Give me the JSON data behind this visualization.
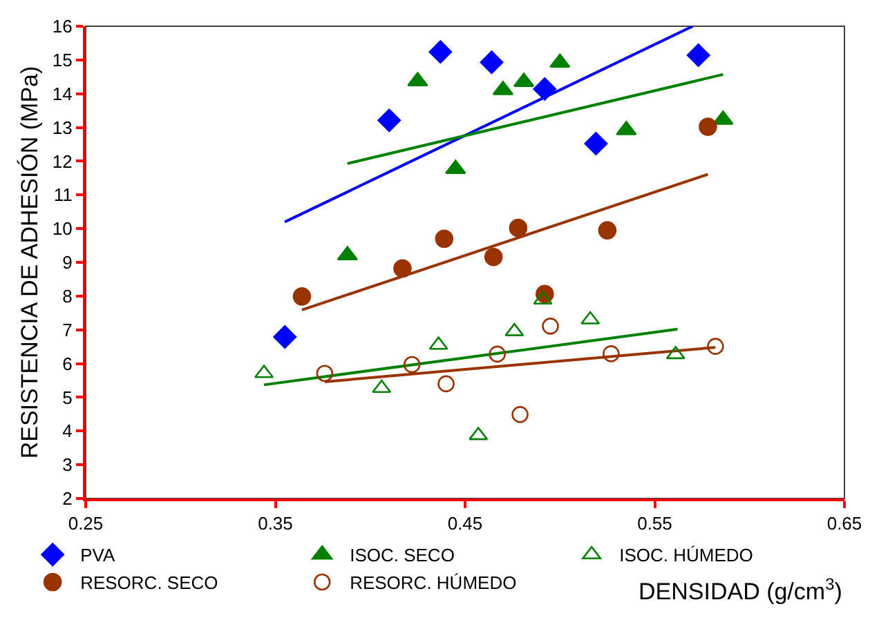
{
  "chart_data": {
    "type": "scatter",
    "xlabel": "DENSIDAD (g/cm$^{3}$)",
    "ylabel": "RESISTENCIA DE ADHESIÓN (MPa)",
    "xlim": [
      0.25,
      0.65
    ],
    "xticks": [
      0.25,
      0.35,
      0.45,
      0.55,
      0.65
    ],
    "ylim": [
      2,
      16
    ],
    "yticks": [
      2,
      3,
      4,
      5,
      6,
      7,
      8,
      9,
      10,
      11,
      12,
      13,
      14,
      15,
      16
    ],
    "grid": false,
    "legend": "bottom",
    "series": [
      {
        "name": "PVA",
        "color": "#0000ff",
        "marker": "diamond",
        "x": [
          0.355,
          0.41,
          0.437,
          0.464,
          0.492,
          0.519,
          0.573
        ],
        "values": [
          6.79,
          13.21,
          15.24,
          14.93,
          14.14,
          12.52,
          15.14
        ]
      },
      {
        "name": "ISOC. SECO",
        "color": "#008000",
        "marker": "triangle",
        "x": [
          0.388,
          0.425,
          0.445,
          0.47,
          0.481,
          0.5,
          0.535,
          0.586
        ],
        "values": [
          9.21,
          14.37,
          11.77,
          14.11,
          14.35,
          14.92,
          12.92,
          13.23
        ]
      },
      {
        "name": "ISOC. HÚMEDO",
        "color": "#008000",
        "marker": "triangle-open",
        "x": [
          0.344,
          0.406,
          0.436,
          0.457,
          0.476,
          0.491,
          0.516,
          0.561
        ],
        "values": [
          5.71,
          5.27,
          6.55,
          3.87,
          6.95,
          7.89,
          7.3,
          6.27
        ]
      },
      {
        "name": "RESORC. SECO",
        "color": "#993300",
        "marker": "circle",
        "x": [
          0.364,
          0.417,
          0.439,
          0.465,
          0.478,
          0.492,
          0.525,
          0.578
        ],
        "values": [
          7.99,
          8.82,
          9.7,
          9.16,
          10.02,
          8.06,
          9.95,
          13.02
        ]
      },
      {
        "name": "RESORC. HÚMEDO",
        "color": "#993300",
        "marker": "circle-open",
        "x": [
          0.376,
          0.422,
          0.44,
          0.467,
          0.479,
          0.495,
          0.527,
          0.582
        ],
        "values": [
          5.71,
          5.97,
          5.4,
          6.28,
          4.49,
          7.11,
          6.29,
          6.51
        ]
      },
      {
        "type": "line",
        "color": "#0000ff",
        "x": [
          0.355,
          0.57
        ],
        "values": [
          10.2,
          16.0
        ]
      },
      {
        "type": "line",
        "color": "#008000",
        "x": [
          0.388,
          0.586
        ],
        "values": [
          11.93,
          14.57
        ]
      },
      {
        "type": "line",
        "color": "#993300",
        "x": [
          0.364,
          0.578
        ],
        "values": [
          7.59,
          11.61
        ]
      },
      {
        "type": "line",
        "color": "#008000",
        "x": [
          0.344,
          0.562
        ],
        "values": [
          5.37,
          7.02
        ]
      },
      {
        "type": "line",
        "color": "#993300",
        "x": [
          0.376,
          0.582
        ],
        "values": [
          5.46,
          6.48
        ]
      }
    ]
  }
}
